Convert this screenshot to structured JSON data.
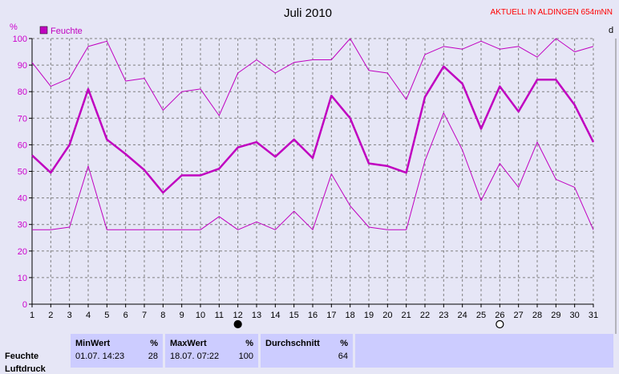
{
  "header": {
    "title": "Juli 2010",
    "station": "AKTUELL IN ALDINGEN 654mNN",
    "right_edge_label": "d"
  },
  "colors": {
    "series": "#c000c0",
    "grid": "#808080",
    "station_text": "#ff0000",
    "axis_text": "#cc00cc",
    "background": "#e6e6f6",
    "stats_cell": "#ccccff"
  },
  "chart_data": {
    "type": "line",
    "ylabel": "%",
    "ylim": [
      0,
      100
    ],
    "y_ticks": [
      "0",
      "10",
      "20",
      "30",
      "40",
      "50",
      "60",
      "70",
      "80",
      "90",
      "100"
    ],
    "x": [
      "1",
      "2",
      "3",
      "4",
      "5",
      "6",
      "7",
      "8",
      "9",
      "10",
      "11",
      "12",
      "13",
      "14",
      "15",
      "16",
      "17",
      "18",
      "19",
      "20",
      "21",
      "22",
      "23",
      "24",
      "25",
      "26",
      "27",
      "28",
      "29",
      "30",
      "31"
    ],
    "legend": [
      {
        "label": "Feuchte",
        "position": "top-left"
      }
    ],
    "grid": true,
    "markers": [
      {
        "day": 12,
        "style": "filled-circle"
      },
      {
        "day": 26,
        "style": "open-circle"
      }
    ],
    "series": [
      {
        "name": "Feuchte",
        "role": "max",
        "values": [
          91,
          82,
          85,
          97,
          99,
          84,
          85,
          73,
          80,
          81,
          71,
          87,
          92,
          87,
          91,
          92,
          92,
          100,
          88,
          87,
          77,
          94,
          97,
          96,
          99,
          96,
          97,
          93,
          100,
          95,
          97
        ]
      },
      {
        "name": "Feuchte",
        "role": "mean",
        "values": [
          56,
          49.5,
          60,
          81,
          62,
          56.5,
          50.5,
          42,
          48.5,
          48.5,
          51,
          59,
          61,
          55.5,
          62,
          55,
          78.5,
          70,
          53,
          52,
          49.5,
          78,
          89.5,
          83,
          66,
          82,
          72.5,
          84.5,
          84.5,
          75,
          61
        ]
      },
      {
        "name": "Feuchte",
        "role": "min",
        "values": [
          28,
          28,
          29,
          52,
          28,
          28,
          28,
          28,
          28,
          28,
          33,
          28,
          31,
          28,
          35,
          28,
          49,
          37,
          29,
          28,
          28,
          54,
          72,
          58,
          39,
          53,
          44,
          61,
          47,
          44,
          28
        ]
      }
    ]
  },
  "stats": {
    "headers": {
      "min": "MinWert",
      "max": "MaxWert",
      "avg": "Durchschnitt",
      "unit": "%"
    },
    "rows": [
      {
        "label": "Feuchte",
        "min_time": "01.07.  14:23",
        "min": "28",
        "max_time": "18.07.  07:22",
        "max": "100",
        "avg": "64"
      }
    ],
    "next_row_label": "Luftdruck"
  }
}
